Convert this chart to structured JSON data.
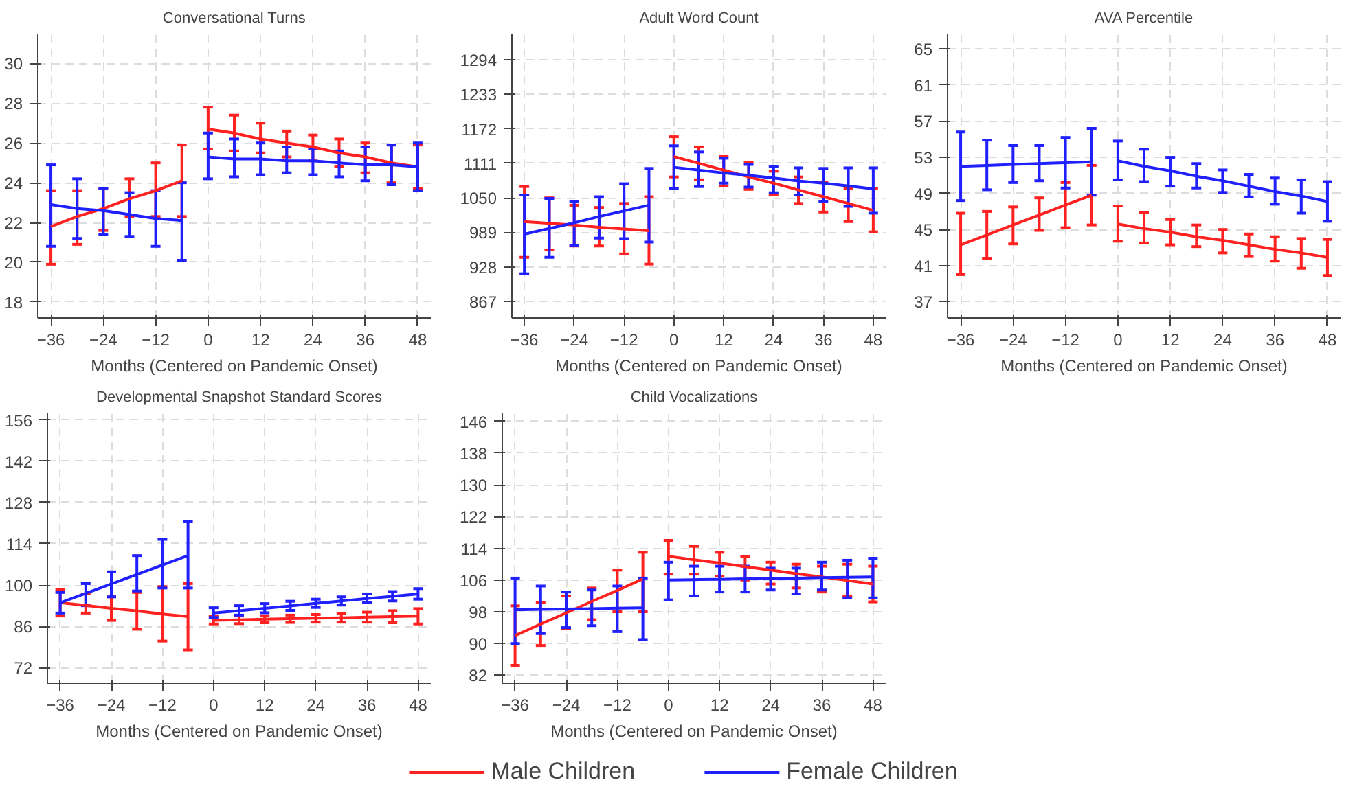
{
  "chart_data": [
    {
      "type": "line",
      "title": "Conversational Turns",
      "xlabel": "Months (Centered on Pandemic Onset)",
      "xlim": [
        -39,
        51
      ],
      "xticks": [
        -36,
        -24,
        -12,
        0,
        12,
        24,
        36,
        48
      ],
      "ylim": [
        17.2,
        31.5
      ],
      "yticks": [
        18,
        20,
        22,
        24,
        26,
        28,
        30
      ],
      "grid": true,
      "series": [
        {
          "color": "#ff2020",
          "x": [
            -36,
            -30,
            -24,
            -18,
            -12,
            -6
          ],
          "values": [
            21.8,
            22.3,
            22.7,
            23.2,
            23.6,
            24.1
          ],
          "errors": [
            [
              19.9,
              23.6
            ],
            [
              20.9,
              23.6
            ],
            [
              21.6,
              23.7
            ],
            [
              22.3,
              24.2
            ],
            [
              22.3,
              25.0
            ],
            [
              22.3,
              25.9
            ]
          ]
        },
        {
          "color": "#ff2020",
          "x": [
            0,
            6,
            12,
            18,
            24,
            30,
            36,
            42,
            48
          ],
          "values": [
            26.7,
            26.5,
            26.2,
            26.0,
            25.8,
            25.5,
            25.3,
            25.0,
            24.8
          ],
          "errors": [
            [
              25.7,
              27.8
            ],
            [
              25.6,
              27.4
            ],
            [
              25.5,
              27.0
            ],
            [
              25.3,
              26.6
            ],
            [
              25.1,
              26.4
            ],
            [
              24.8,
              26.2
            ],
            [
              24.5,
              26.0
            ],
            [
              24.0,
              25.9
            ],
            [
              23.7,
              25.9
            ]
          ]
        },
        {
          "color": "#2020ff",
          "x": [
            -36,
            -30,
            -24,
            -18,
            -12,
            -6
          ],
          "values": [
            22.9,
            22.7,
            22.6,
            22.4,
            22.2,
            22.1
          ],
          "errors": [
            [
              20.8,
              24.9
            ],
            [
              21.2,
              24.2
            ],
            [
              21.4,
              23.7
            ],
            [
              21.3,
              23.5
            ],
            [
              20.8,
              23.6
            ],
            [
              20.1,
              24.0
            ]
          ]
        },
        {
          "color": "#2020ff",
          "x": [
            0,
            6,
            12,
            18,
            24,
            30,
            36,
            42,
            48
          ],
          "values": [
            25.3,
            25.2,
            25.2,
            25.1,
            25.1,
            25.0,
            24.9,
            24.9,
            24.8
          ],
          "errors": [
            [
              24.2,
              26.5
            ],
            [
              24.3,
              26.2
            ],
            [
              24.4,
              26.0
            ],
            [
              24.5,
              25.8
            ],
            [
              24.4,
              25.7
            ],
            [
              24.3,
              25.6
            ],
            [
              24.1,
              25.8
            ],
            [
              23.9,
              25.9
            ],
            [
              23.6,
              26.0
            ]
          ]
        }
      ]
    },
    {
      "type": "line",
      "title": "Adult Word Count",
      "xlabel": "Months (Centered on Pandemic Onset)",
      "xlim": [
        -39,
        51
      ],
      "xticks": [
        -36,
        -24,
        -12,
        0,
        12,
        24,
        36,
        48
      ],
      "ylim": [
        838,
        1340
      ],
      "yticks": [
        867,
        928,
        989,
        1050,
        1111,
        1172,
        1233,
        1294
      ],
      "grid": true,
      "series": [
        {
          "color": "#ff2020",
          "x": [
            -36,
            -30,
            -24,
            -18,
            -12,
            -6
          ],
          "values": [
            1008,
            1005,
            1002,
            998,
            995,
            992
          ],
          "errors": [
            [
              945,
              1070
            ],
            [
              958,
              1050
            ],
            [
              965,
              1037
            ],
            [
              965,
              1033
            ],
            [
              951,
              1040
            ],
            [
              933,
              1052
            ]
          ]
        },
        {
          "color": "#ff2020",
          "x": [
            0,
            6,
            12,
            18,
            24,
            30,
            36,
            42,
            48
          ],
          "values": [
            1123,
            1111,
            1099,
            1087,
            1076,
            1064,
            1052,
            1040,
            1028
          ],
          "errors": [
            [
              1087,
              1158
            ],
            [
              1082,
              1140
            ],
            [
              1071,
              1123
            ],
            [
              1065,
              1113
            ],
            [
              1055,
              1097
            ],
            [
              1040,
              1087
            ],
            [
              1025,
              1077
            ],
            [
              1008,
              1067
            ],
            [
              990,
              1066
            ]
          ]
        },
        {
          "color": "#2020ff",
          "x": [
            -36,
            -30,
            -24,
            -18,
            -12,
            -6
          ],
          "values": [
            986,
            996,
            1006,
            1017,
            1027,
            1037
          ],
          "errors": [
            [
              916,
              1055
            ],
            [
              945,
              1049
            ],
            [
              966,
              1043
            ],
            [
              979,
              1052
            ],
            [
              978,
              1075
            ],
            [
              972,
              1102
            ]
          ]
        },
        {
          "color": "#2020ff",
          "x": [
            0,
            6,
            12,
            18,
            24,
            30,
            36,
            42,
            48
          ],
          "values": [
            1104,
            1099,
            1094,
            1090,
            1085,
            1080,
            1076,
            1071,
            1066
          ],
          "errors": [
            [
              1066,
              1142
            ],
            [
              1070,
              1131
            ],
            [
              1076,
              1120
            ],
            [
              1069,
              1109
            ],
            [
              1059,
              1106
            ],
            [
              1055,
              1103
            ],
            [
              1043,
              1102
            ],
            [
              1035,
              1103
            ],
            [
              1023,
              1103
            ]
          ]
        }
      ]
    },
    {
      "type": "line",
      "title": "AVA Percentile",
      "xlabel": "Months (Centered on Pandemic Onset)",
      "xlim": [
        -39,
        51
      ],
      "xticks": [
        -36,
        -24,
        -12,
        0,
        12,
        24,
        36,
        48
      ],
      "ylim": [
        35.2,
        66.7
      ],
      "yticks": [
        37,
        41,
        45,
        49,
        53,
        57,
        61,
        65
      ],
      "grid": true,
      "series": [
        {
          "color": "#ff2020",
          "x": [
            -36,
            -30,
            -24,
            -18,
            -12,
            -6
          ],
          "values": [
            43.3,
            44.4,
            45.5,
            46.6,
            47.7,
            48.8
          ],
          "errors": [
            [
              40.0,
              46.8
            ],
            [
              41.8,
              47.0
            ],
            [
              43.4,
              47.5
            ],
            [
              44.9,
              48.5
            ],
            [
              45.2,
              50.2
            ],
            [
              45.5,
              52.1
            ]
          ]
        },
        {
          "color": "#ff2020",
          "x": [
            0,
            6,
            12,
            18,
            24,
            30,
            36,
            42,
            48
          ],
          "values": [
            45.6,
            45.1,
            44.7,
            44.2,
            43.8,
            43.3,
            42.8,
            42.4,
            41.9
          ],
          "errors": [
            [
              43.7,
              47.6
            ],
            [
              43.5,
              46.9
            ],
            [
              43.3,
              46.1
            ],
            [
              43.1,
              45.5
            ],
            [
              42.4,
              45.0
            ],
            [
              42.0,
              44.5
            ],
            [
              41.5,
              44.2
            ],
            [
              40.7,
              44.0
            ],
            [
              39.9,
              43.9
            ]
          ]
        },
        {
          "color": "#2020ff",
          "x": [
            -36,
            -30,
            -24,
            -18,
            -12,
            -6
          ],
          "values": [
            52.0,
            52.1,
            52.2,
            52.3,
            52.4,
            52.5
          ],
          "errors": [
            [
              48.2,
              55.8
            ],
            [
              49.4,
              54.9
            ],
            [
              50.2,
              54.3
            ],
            [
              50.4,
              54.3
            ],
            [
              49.6,
              55.2
            ],
            [
              48.8,
              56.2
            ]
          ]
        },
        {
          "color": "#2020ff",
          "x": [
            0,
            6,
            12,
            18,
            24,
            30,
            36,
            42,
            48
          ],
          "values": [
            52.6,
            52.0,
            51.5,
            50.9,
            50.4,
            49.8,
            49.2,
            48.7,
            48.1
          ],
          "errors": [
            [
              50.5,
              54.8
            ],
            [
              50.3,
              53.9
            ],
            [
              49.8,
              53.0
            ],
            [
              49.6,
              52.3
            ],
            [
              49.1,
              51.6
            ],
            [
              48.6,
              51.1
            ],
            [
              47.8,
              50.7
            ],
            [
              46.8,
              50.5
            ],
            [
              45.9,
              50.3
            ]
          ]
        }
      ]
    },
    {
      "type": "line",
      "title": "Developmental Snapshot Standard Scores",
      "xlabel": "Months (Centered on Pandemic Onset)",
      "xlim": [
        -39,
        51
      ],
      "xticks": [
        -36,
        -24,
        -12,
        0,
        12,
        24,
        36,
        48
      ],
      "ylim": [
        66.7,
        158.5
      ],
      "yticks": [
        72,
        86,
        100,
        114,
        128,
        142,
        156
      ],
      "grid": true,
      "series": [
        {
          "color": "#ff2020",
          "x": [
            -36,
            -30,
            -24,
            -18,
            -12,
            -6
          ],
          "values": [
            94.0,
            93.1,
            92.1,
            91.2,
            90.2,
            89.3
          ],
          "errors": [
            [
              89.5,
              98.5
            ],
            [
              90.5,
              97
            ],
            [
              88,
              96
            ],
            [
              85,
              97.5
            ],
            [
              81,
              99.5
            ],
            [
              78,
              100.5
            ]
          ]
        },
        {
          "color": "#ff2020",
          "x": [
            0,
            6,
            12,
            18,
            24,
            30,
            36,
            42,
            48
          ],
          "values": [
            88.0,
            88.2,
            88.4,
            88.6,
            88.8,
            88.9,
            89.1,
            89.3,
            89.5
          ],
          "errors": [
            [
              86.8,
              89.5
            ],
            [
              86.9,
              89.5
            ],
            [
              87.2,
              89.6
            ],
            [
              87.3,
              89.8
            ],
            [
              87.4,
              90.0
            ],
            [
              87.4,
              90.4
            ],
            [
              87.4,
              90.8
            ],
            [
              87.2,
              91.3
            ],
            [
              86.8,
              92
            ]
          ]
        },
        {
          "color": "#2020ff",
          "x": [
            -36,
            -30,
            -24,
            -18,
            -12,
            -6
          ],
          "values": [
            94.0,
            97.2,
            100.4,
            103.6,
            106.8,
            110.0
          ],
          "errors": [
            [
              90.5,
              97.5
            ],
            [
              93,
              100.5
            ],
            [
              96,
              104.5
            ],
            [
              98,
              110
            ],
            [
              99,
              115.5
            ],
            [
              99,
              121.5
            ]
          ]
        },
        {
          "color": "#2020ff",
          "x": [
            0,
            6,
            12,
            18,
            24,
            30,
            36,
            42,
            48
          ],
          "values": [
            90.5,
            91.3,
            92.1,
            92.9,
            93.8,
            94.6,
            95.4,
            96.2,
            97.0
          ],
          "errors": [
            [
              89,
              92.3
            ],
            [
              89.8,
              93
            ],
            [
              90.6,
              93.7
            ],
            [
              91.4,
              94.5
            ],
            [
              92.4,
              95.2
            ],
            [
              93.2,
              96
            ],
            [
              94,
              97
            ],
            [
              94.6,
              97.8
            ],
            [
              95.2,
              98.8
            ]
          ]
        }
      ]
    },
    {
      "type": "line",
      "title": "Child Vocalizations",
      "xlabel": "Months (Centered on Pandemic Onset)",
      "xlim": [
        -39,
        51
      ],
      "xticks": [
        -36,
        -24,
        -12,
        0,
        12,
        24,
        36,
        48
      ],
      "ylim": [
        80,
        148.2
      ],
      "yticks": [
        82,
        90,
        98,
        106,
        114,
        122,
        130,
        138,
        146
      ],
      "grid": true,
      "legend": "bottom",
      "series": [
        {
          "name": "Male Children",
          "color": "#ff2020",
          "x": [
            -36,
            -30,
            -24,
            -18,
            -12,
            -6
          ],
          "values": [
            92.0,
            94.9,
            97.7,
            100.6,
            103.4,
            106.3
          ],
          "errors": [
            [
              84.5,
              99.5
            ],
            [
              89.5,
              100.3
            ],
            [
              93.8,
              102
            ],
            [
              96,
              104
            ],
            [
              98,
              108.5
            ],
            [
              98,
              113
            ]
          ]
        },
        {
          "color": "#ff2020",
          "x": [
            0,
            6,
            12,
            18,
            24,
            30,
            36,
            42,
            48
          ],
          "values": [
            112.0,
            111.1,
            110.3,
            109.4,
            108.5,
            107.6,
            106.8,
            105.9,
            105.0
          ],
          "errors": [
            [
              107.5,
              116
            ],
            [
              107.5,
              114.5
            ],
            [
              107,
              113
            ],
            [
              106,
              112
            ],
            [
              105,
              110.5
            ],
            [
              104,
              110
            ],
            [
              103,
              109.5
            ],
            [
              102,
              110
            ],
            [
              100.5,
              109.5
            ]
          ]
        },
        {
          "name": "Female Children",
          "color": "#2020ff",
          "x": [
            -36,
            -30,
            -24,
            -18,
            -12,
            -6
          ],
          "values": [
            98.5,
            98.6,
            98.7,
            98.8,
            98.9,
            99.0
          ],
          "errors": [
            [
              90,
              106.5
            ],
            [
              92.5,
              104.5
            ],
            [
              94,
              103
            ],
            [
              94.5,
              103.5
            ],
            [
              93,
              104.5
            ],
            [
              91,
              106.5
            ]
          ]
        },
        {
          "color": "#2020ff",
          "x": [
            0,
            6,
            12,
            18,
            24,
            30,
            36,
            42,
            48
          ],
          "values": [
            106.0,
            106.1,
            106.2,
            106.3,
            106.4,
            106.5,
            106.6,
            106.7,
            106.8
          ],
          "errors": [
            [
              101,
              110.5
            ],
            [
              102,
              109.5
            ],
            [
              103,
              109.5
            ],
            [
              103,
              109.5
            ],
            [
              103.5,
              109
            ],
            [
              102.5,
              109
            ],
            [
              103.5,
              110.5
            ],
            [
              101.5,
              111
            ],
            [
              101.5,
              111.5
            ]
          ]
        }
      ]
    }
  ]
}
